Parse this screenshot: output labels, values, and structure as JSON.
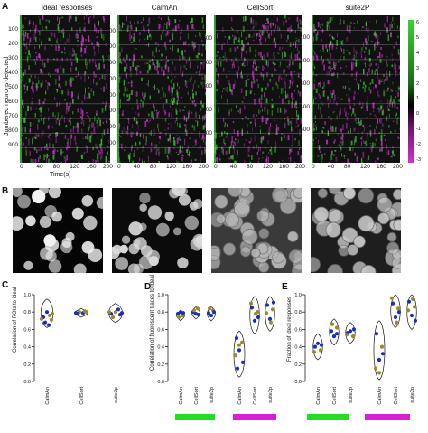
{
  "panel_labels": {
    "A": "A",
    "B": "B",
    "C": "C",
    "D": "D",
    "E": "E"
  },
  "panel_a": {
    "titles": [
      "Ideal responses",
      "CalmAn",
      "CellSort",
      "suite2P"
    ],
    "ylabel": "Jumbered neurons detected",
    "xlabel": "Time(s)",
    "x_ticks": [
      "0",
      "40",
      "80",
      "120",
      "160",
      "200"
    ],
    "y_ticks": [
      [
        "100",
        "200",
        "300",
        "400",
        "500",
        "600",
        "700",
        "800",
        "900"
      ],
      [
        "100",
        "200",
        "300",
        "400",
        "500",
        "600",
        "700",
        "800"
      ],
      [
        "100",
        "200",
        "300",
        "400",
        "500"
      ],
      [
        "100",
        "200",
        "300",
        "400",
        "500"
      ]
    ],
    "colorbar_label": "z-score fluorescence (a.u.)",
    "colorbar_ticks": [
      "6",
      "5",
      "4",
      "3",
      "2",
      "1",
      "0",
      "-1",
      "-2",
      "-3"
    ],
    "colors": {
      "high": "#38d430",
      "mid": "#000000",
      "low": "#d42fd4"
    }
  },
  "panel_c": {
    "ylabel": "Correlation of ROIs to ideal",
    "y_ticks": [
      "1.0",
      "0.8",
      "0.6",
      "0.4",
      "0.2",
      "0.0"
    ],
    "categories": [
      "CalmAn",
      "CellSort",
      "suite2p"
    ]
  },
  "panel_d": {
    "ylabel": "Correlation of fluorescent traces to ideal",
    "y_ticks": [
      "1.0",
      "0.8",
      "0.6",
      "0.4",
      "0.2",
      "0.0"
    ],
    "categories": [
      "CalmAn",
      "CellSort",
      "suite2p",
      "CalmAn",
      "CellSort",
      "suite2p"
    ]
  },
  "panel_e": {
    "ylabel": "Fraction of ideal responses",
    "y_ticks": [
      "1.0",
      "0.8",
      "0.6",
      "0.4",
      "0.2",
      "0.0"
    ],
    "categories": [
      "CalmAn",
      "CellSort",
      "suite2p",
      "CalmAn",
      "CellSort",
      "suite2p"
    ]
  },
  "condition_colors": {
    "green": "#22dd22",
    "magenta": "#d81fd8"
  },
  "dot_colors": {
    "blue": "#1a2fb8",
    "olive": "#9a8a2a"
  }
}
